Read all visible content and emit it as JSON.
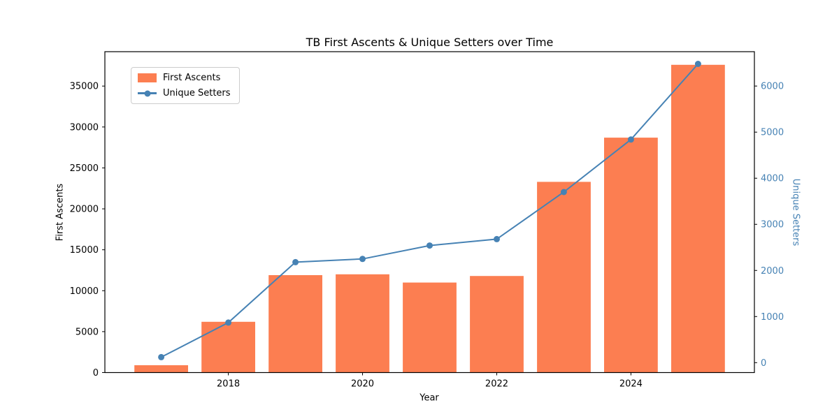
{
  "chart_data": {
    "type": "bar",
    "title": "TB First Ascents & Unique Setters over Time",
    "xlabel": "Year",
    "ylabel_left": "First Ascents",
    "ylabel_right": "Unique Setters",
    "categories": [
      2017,
      2018,
      2019,
      2020,
      2021,
      2022,
      2023,
      2024,
      2025
    ],
    "series": [
      {
        "name": "First Ascents",
        "type": "bar",
        "axis": "left",
        "color": "#FC7E51",
        "values": [
          900,
          6200,
          11900,
          12000,
          11000,
          11800,
          23300,
          28700,
          37600
        ]
      },
      {
        "name": "Unique Setters",
        "type": "line",
        "axis": "right",
        "color": "#4682B4",
        "values": [
          120,
          870,
          2180,
          2250,
          2540,
          2680,
          3700,
          4840,
          6480
        ]
      }
    ],
    "xticks": [
      2018,
      2020,
      2022,
      2024
    ],
    "yticks_left": [
      0,
      5000,
      10000,
      15000,
      20000,
      25000,
      30000,
      35000
    ],
    "yticks_right": [
      0,
      1000,
      2000,
      3000,
      4000,
      5000,
      6000
    ],
    "xlim": [
      2016.16,
      2025.84
    ],
    "ylim_left": [
      0,
      39200
    ],
    "ylim_right": [
      -215,
      6745
    ],
    "bar_width_years": 0.8,
    "grid": false,
    "legend_position": "upper-left",
    "colors": {
      "background": "#ffffff",
      "axis": "#000000",
      "left_tick_labels": "#000000",
      "right_tick_labels": "#4682B4",
      "right_axis_label": "#4682B4"
    }
  }
}
